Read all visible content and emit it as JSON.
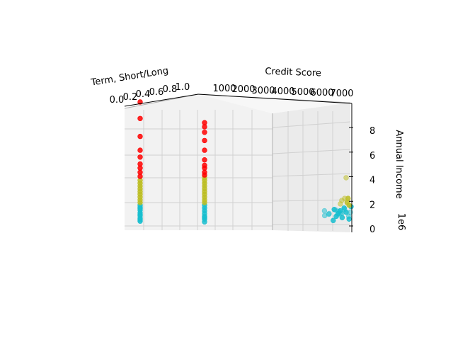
{
  "chart_data": {
    "type": "scatter",
    "projection": "3d",
    "axes": {
      "x": {
        "label": "Term, Short/Long",
        "ticks": [
          "0.0",
          "0.2",
          "0.4",
          "0.6",
          "0.8",
          "1.0"
        ],
        "range": [
          0,
          1
        ]
      },
      "y": {
        "label": "Credit Score",
        "ticks": [
          "1000",
          "2000",
          "3000",
          "4000",
          "5000",
          "6000",
          "7000"
        ],
        "range": [
          0,
          7500
        ]
      },
      "z": {
        "label": "Annual Income",
        "ticks": [
          "0",
          "2",
          "4",
          "6",
          "8"
        ],
        "range": [
          0,
          9
        ],
        "offset_label": "1e6"
      }
    },
    "grid": true,
    "legend": "none",
    "colors": {
      "low": "#17becf",
      "mid": "#bcbd22",
      "high": "#ff0000",
      "pane": "#f2f2f2",
      "grid": "#d0d0d0"
    },
    "clusters": [
      {
        "color": "low",
        "points": [
          {
            "x": 0,
            "y": 700,
            "z": 0.35
          },
          {
            "x": 0,
            "y": 700,
            "z": 0.55
          },
          {
            "x": 0,
            "y": 700,
            "z": 0.75
          },
          {
            "x": 0,
            "y": 700,
            "z": 0.95
          },
          {
            "x": 0,
            "y": 700,
            "z": 1.15
          },
          {
            "x": 0,
            "y": 700,
            "z": 1.35
          },
          {
            "x": 0,
            "y": 700,
            "z": 1.5
          },
          {
            "x": 0,
            "y": 700,
            "z": 0.45
          },
          {
            "x": 0,
            "y": 700,
            "z": 0.85
          },
          {
            "x": 0,
            "y": 700,
            "z": 1.25
          },
          {
            "x": 1,
            "y": 700,
            "z": 0.3
          },
          {
            "x": 1,
            "y": 700,
            "z": 0.5
          },
          {
            "x": 1,
            "y": 700,
            "z": 0.7
          },
          {
            "x": 1,
            "y": 700,
            "z": 0.9
          },
          {
            "x": 1,
            "y": 700,
            "z": 1.1
          },
          {
            "x": 1,
            "y": 700,
            "z": 1.3
          },
          {
            "x": 1,
            "y": 700,
            "z": 1.5
          },
          {
            "x": 1,
            "y": 700,
            "z": 0.6
          }
        ]
      },
      {
        "color": "mid",
        "points": [
          {
            "x": 0,
            "y": 700,
            "z": 1.7
          },
          {
            "x": 0,
            "y": 700,
            "z": 1.9
          },
          {
            "x": 0,
            "y": 700,
            "z": 2.1
          },
          {
            "x": 0,
            "y": 700,
            "z": 2.3
          },
          {
            "x": 0,
            "y": 700,
            "z": 2.5
          },
          {
            "x": 0,
            "y": 700,
            "z": 2.7
          },
          {
            "x": 0,
            "y": 700,
            "z": 2.9
          },
          {
            "x": 0,
            "y": 700,
            "z": 3.1
          },
          {
            "x": 0,
            "y": 700,
            "z": 3.3
          },
          {
            "x": 1,
            "y": 700,
            "z": 1.7
          },
          {
            "x": 1,
            "y": 700,
            "z": 1.9
          },
          {
            "x": 1,
            "y": 700,
            "z": 2.1
          },
          {
            "x": 1,
            "y": 700,
            "z": 2.3
          },
          {
            "x": 1,
            "y": 700,
            "z": 2.5
          },
          {
            "x": 1,
            "y": 700,
            "z": 2.7
          },
          {
            "x": 1,
            "y": 700,
            "z": 2.9
          },
          {
            "x": 1,
            "y": 700,
            "z": 3.1
          },
          {
            "x": 1,
            "y": 700,
            "z": 3.3
          },
          {
            "x": 1,
            "y": 700,
            "z": 3.5
          }
        ]
      },
      {
        "color": "high",
        "points": [
          {
            "x": 0,
            "y": 700,
            "z": 3.6
          },
          {
            "x": 0,
            "y": 700,
            "z": 3.9
          },
          {
            "x": 0,
            "y": 700,
            "z": 4.2
          },
          {
            "x": 0,
            "y": 700,
            "z": 4.5
          },
          {
            "x": 0,
            "y": 700,
            "z": 5.0
          },
          {
            "x": 0,
            "y": 700,
            "z": 5.5
          },
          {
            "x": 0,
            "y": 700,
            "z": 6.5
          },
          {
            "x": 0,
            "y": 700,
            "z": 7.8
          },
          {
            "x": 0,
            "y": 700,
            "z": 9.0
          },
          {
            "x": 1,
            "y": 700,
            "z": 3.7
          },
          {
            "x": 1,
            "y": 700,
            "z": 3.9
          },
          {
            "x": 1,
            "y": 700,
            "z": 4.2
          },
          {
            "x": 1,
            "y": 700,
            "z": 4.4
          },
          {
            "x": 1,
            "y": 700,
            "z": 4.8
          },
          {
            "x": 1,
            "y": 700,
            "z": 5.5
          },
          {
            "x": 1,
            "y": 700,
            "z": 6.2
          },
          {
            "x": 1,
            "y": 700,
            "z": 6.8
          },
          {
            "x": 1,
            "y": 700,
            "z": 7.2
          },
          {
            "x": 1,
            "y": 700,
            "z": 7.5
          }
        ]
      },
      {
        "color": "low",
        "points": [
          {
            "x": 0.1,
            "y": 7100,
            "z": 0.75
          },
          {
            "x": 0.3,
            "y": 7050,
            "z": 0.85
          },
          {
            "x": 0.5,
            "y": 7150,
            "z": 0.8
          },
          {
            "x": 0.7,
            "y": 7100,
            "z": 0.9
          },
          {
            "x": 0.9,
            "y": 7200,
            "z": 1.0
          },
          {
            "x": 0.2,
            "y": 7000,
            "z": 1.1
          },
          {
            "x": 0.6,
            "y": 7150,
            "z": 0.95
          },
          {
            "x": 0.8,
            "y": 7100,
            "z": 1.2
          },
          {
            "x": 0.4,
            "y": 7250,
            "z": 1.05
          },
          {
            "x": 0.95,
            "y": 7100,
            "z": 0.7
          },
          {
            "x": 0.15,
            "y": 7200,
            "z": 0.9
          },
          {
            "x": 0.55,
            "y": 7050,
            "z": 1.15
          }
        ]
      },
      {
        "color": "mid",
        "points": [
          {
            "x": 0.6,
            "y": 7150,
            "z": 1.6
          },
          {
            "x": 0.65,
            "y": 7150,
            "z": 1.85
          },
          {
            "x": 0.7,
            "y": 7200,
            "z": 2.0
          },
          {
            "x": 0.75,
            "y": 7200,
            "z": 3.5
          }
        ]
      },
      {
        "color": "low",
        "points": [
          {
            "x": 0.05,
            "y": 7300,
            "z": 0.4
          },
          {
            "x": 0.2,
            "y": 7300,
            "z": 0.7
          },
          {
            "x": 0.3,
            "y": 7300,
            "z": 0.9
          },
          {
            "x": 0.4,
            "y": 7300,
            "z": 1.1
          },
          {
            "x": 0.5,
            "y": 7300,
            "z": 0.6
          },
          {
            "x": 0.6,
            "y": 7300,
            "z": 1.3
          },
          {
            "x": 0.7,
            "y": 7300,
            "z": 1.0
          },
          {
            "x": 0.85,
            "y": 7300,
            "z": 0.5
          },
          {
            "x": 0.95,
            "y": 7300,
            "z": 1.4
          },
          {
            "x": 0.1,
            "y": 7300,
            "z": 1.2
          }
        ]
      },
      {
        "color": "mid",
        "points": [
          {
            "x": 0.75,
            "y": 7300,
            "z": 1.7
          },
          {
            "x": 0.8,
            "y": 7300,
            "z": 2.0
          },
          {
            "x": 0.85,
            "y": 7300,
            "z": 1.5
          }
        ]
      }
    ]
  }
}
